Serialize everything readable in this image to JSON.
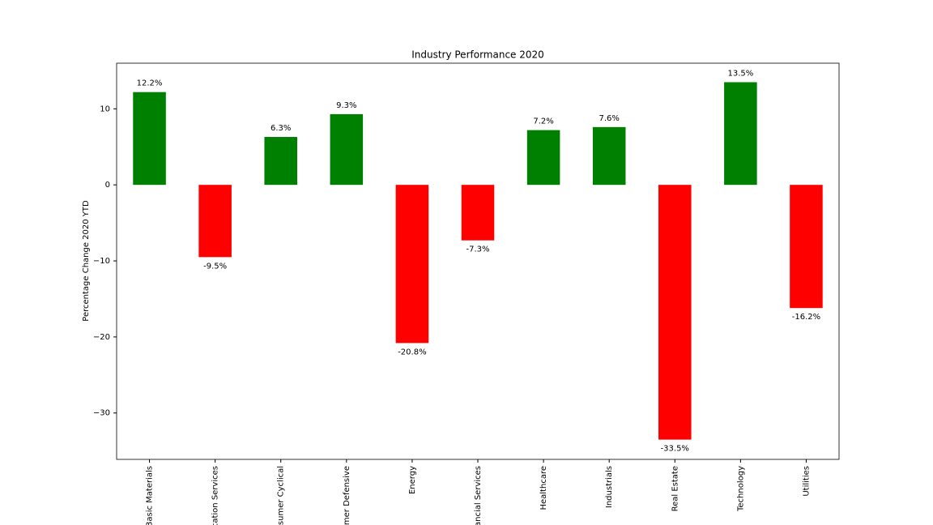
{
  "chart_data": {
    "type": "bar",
    "title": "Industry Performance 2020",
    "y_label": "Percentage Change 2020 YTD",
    "categories": [
      "Basic Materials",
      "cation Services",
      "sumer Cyclical",
      "mer Defensive",
      "Energy",
      "ancial Services",
      "Healthcare",
      "Industrials",
      "Real Estate",
      "Technology",
      "Utilities"
    ],
    "values": [
      12.2,
      -9.5,
      6.3,
      9.3,
      -20.8,
      -7.3,
      7.2,
      7.6,
      -33.5,
      13.5,
      -16.2
    ],
    "value_labels": [
      "12.2%",
      "-9.5%",
      "6.3%",
      "9.3%",
      "-20.8%",
      "-7.3%",
      "7.2%",
      "7.6%",
      "-33.5%",
      "13.5%",
      "-16.2%"
    ],
    "colors": [
      "#008000",
      "#ff0000",
      "#008000",
      "#008000",
      "#ff0000",
      "#ff0000",
      "#008000",
      "#008000",
      "#ff0000",
      "#008000",
      "#ff0000"
    ],
    "ylim": [
      -36.1,
      16.0
    ],
    "yticks": [
      {
        "value": -30,
        "label": "−30"
      },
      {
        "value": -20,
        "label": "−20"
      },
      {
        "value": -10,
        "label": "−10"
      },
      0,
      10
    ],
    "grid": false
  }
}
